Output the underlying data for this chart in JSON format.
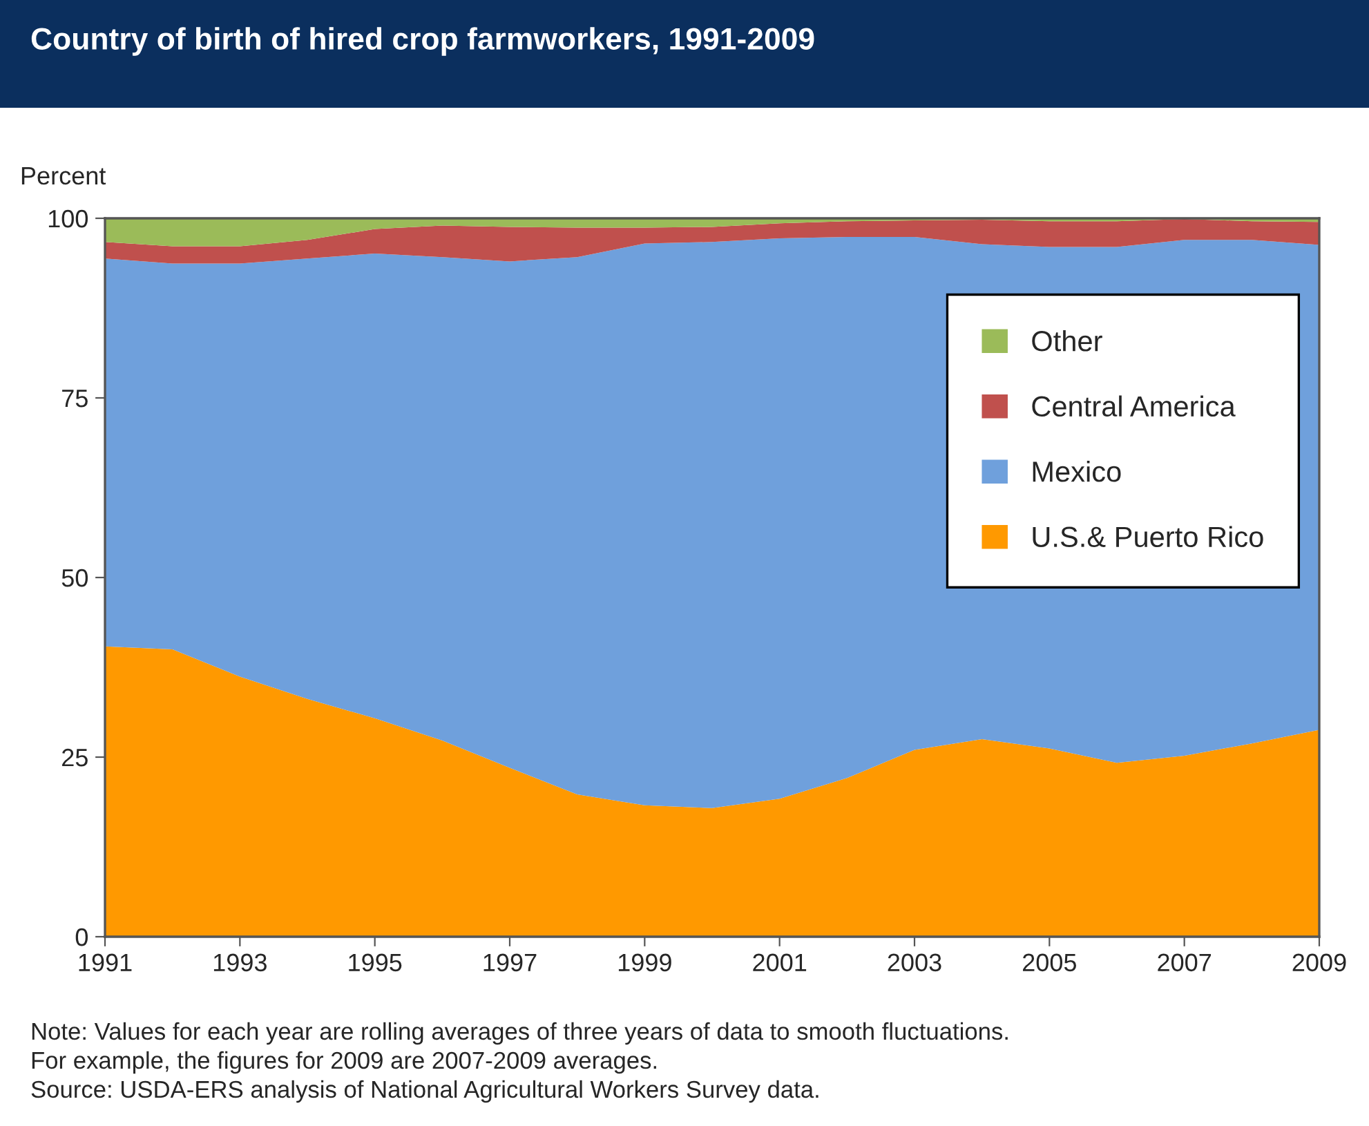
{
  "chart_data": {
    "type": "area",
    "stacked": true,
    "title": "Country of birth of hired crop farmworkers, 1991-2009",
    "ylabel": "Percent",
    "x": [
      1991,
      1992,
      1993,
      1994,
      1995,
      1996,
      1997,
      1998,
      1999,
      2000,
      2001,
      2002,
      2003,
      2004,
      2005,
      2006,
      2007,
      2008,
      2009
    ],
    "series": [
      {
        "name": "U.S.& Puerto Rico",
        "color": "#ff9900",
        "values": [
          40.4,
          40.0,
          36.2,
          33.1,
          30.4,
          27.3,
          23.5,
          19.8,
          18.3,
          17.9,
          19.2,
          22.1,
          26.0,
          27.5,
          26.2,
          24.2,
          25.2,
          26.9,
          28.8
        ]
      },
      {
        "name": "Mexico",
        "color": "#6fa0dc",
        "values": [
          54.0,
          53.7,
          57.5,
          61.3,
          64.7,
          67.3,
          70.5,
          74.8,
          78.2,
          78.8,
          78.0,
          75.3,
          71.4,
          68.9,
          69.8,
          71.8,
          71.8,
          70.1,
          67.5
        ]
      },
      {
        "name": "Central America",
        "color": "#c0504d",
        "values": [
          2.3,
          2.4,
          2.4,
          2.6,
          3.4,
          4.4,
          4.8,
          4.1,
          2.2,
          2.1,
          2.1,
          2.2,
          2.3,
          3.4,
          3.6,
          3.6,
          2.9,
          2.6,
          3.2
        ]
      },
      {
        "name": "Other",
        "color": "#9bbb59",
        "values": [
          3.3,
          3.9,
          3.9,
          3.0,
          1.5,
          1.0,
          1.2,
          1.3,
          1.3,
          1.2,
          0.7,
          0.4,
          0.3,
          0.2,
          0.4,
          0.4,
          0.1,
          0.4,
          0.5
        ]
      }
    ],
    "xlim": [
      1991,
      2009
    ],
    "xticks": [
      1991,
      1993,
      1995,
      1997,
      1999,
      2001,
      2003,
      2005,
      2007,
      2009
    ],
    "ylim": [
      0,
      100
    ],
    "yticks": [
      0,
      25,
      50,
      75,
      100
    ],
    "grid": false,
    "legend": "right",
    "annotations": [
      "Note: Values for each year are rolling averages of three years of data to smooth fluctuations.",
      "For example, the figures for 2009 are 2007-2009 averages.",
      "Source: USDA-ERS analysis of National Agricultural Workers Survey data."
    ]
  }
}
